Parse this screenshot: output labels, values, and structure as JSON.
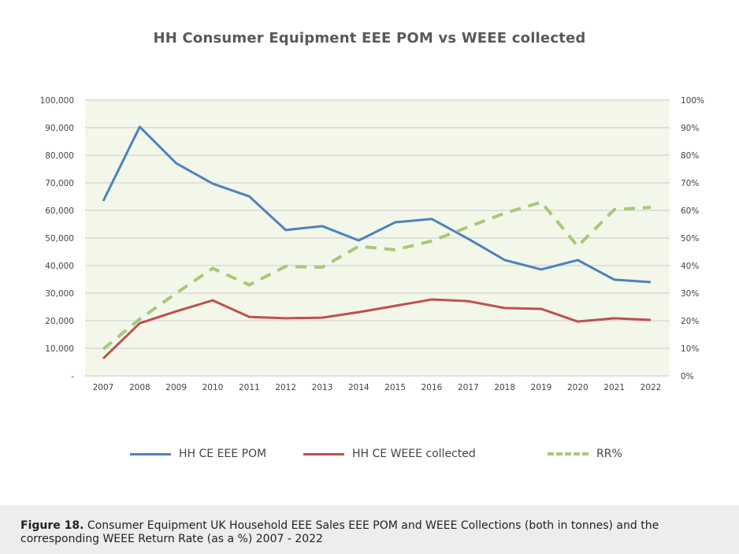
{
  "chart_data": {
    "type": "line",
    "title": "HH Consumer Equipment EEE POM vs WEEE collected",
    "categories": [
      "2007",
      "2008",
      "2009",
      "2010",
      "2011",
      "2012",
      "2013",
      "2014",
      "2015",
      "2016",
      "2017",
      "2018",
      "2019",
      "2020",
      "2021",
      "2022"
    ],
    "series": [
      {
        "name": "HH CE EEE POM",
        "axis": "left",
        "color": "#4f81bd",
        "style": "solid",
        "values": [
          63400,
          90300,
          77100,
          69700,
          65100,
          52900,
          54300,
          49100,
          55700,
          56900,
          49700,
          42000,
          38600,
          42000,
          34900,
          34000
        ]
      },
      {
        "name": "HH CE WEEE collected",
        "axis": "left",
        "color": "#c0504d",
        "style": "solid",
        "values": [
          6300,
          19100,
          23400,
          27400,
          21400,
          20900,
          21100,
          23100,
          25400,
          27700,
          27100,
          24600,
          24300,
          19700,
          20900,
          20300
        ]
      },
      {
        "name": "RR%",
        "axis": "right",
        "color": "#a9c87a",
        "style": "dashed",
        "values": [
          9.7,
          20.6,
          30,
          39,
          33,
          39.7,
          39.4,
          47,
          45.7,
          48.9,
          54,
          59,
          63,
          47,
          60.3,
          61.1
        ]
      }
    ],
    "left_axis": {
      "ylim": [
        0,
        100000
      ],
      "tick_labels": [
        "-",
        "10,000",
        "20,000",
        "30,000",
        "40,000",
        "50,000",
        "60,000",
        "70,000",
        "80,000",
        "90,000",
        "100,000"
      ]
    },
    "right_axis": {
      "ylim": [
        0,
        100
      ],
      "tick_labels": [
        "0%",
        "10%",
        "20%",
        "30%",
        "40%",
        "50%",
        "60%",
        "70%",
        "80%",
        "90%",
        "100%"
      ]
    },
    "grid": true,
    "plot_background": "#f3f7e9",
    "legend_position": "bottom"
  },
  "caption": {
    "label": "Figure 18.",
    "text": " Consumer Equipment UK Household EEE Sales EEE POM and WEEE Collections (both in tonnes) and the corresponding WEEE Return Rate (as a %) 2007 - 2022"
  }
}
